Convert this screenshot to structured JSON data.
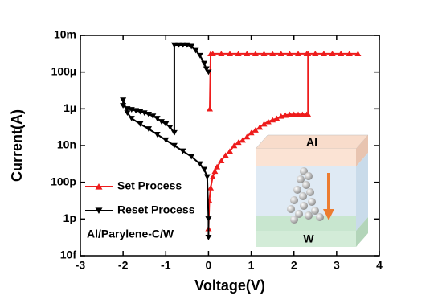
{
  "chart_data": {
    "type": "line",
    "x_label": "Voltage(V)",
    "y_label": "Current(A)",
    "xlim": [
      -3,
      4
    ],
    "xticks": [
      -3,
      -2,
      -1,
      0,
      1,
      2,
      3,
      4
    ],
    "ylim": [
      1e-14,
      0.01
    ],
    "yscale": "log",
    "yticks": [
      {
        "value": 0.01,
        "label": "10m"
      },
      {
        "value": 0.0001,
        "label": "100µ"
      },
      {
        "value": 1e-06,
        "label": "1µ"
      },
      {
        "value": 1e-08,
        "label": "10n"
      },
      {
        "value": 1e-10,
        "label": "100p"
      },
      {
        "value": 1e-12,
        "label": "1p"
      },
      {
        "value": 1e-14,
        "label": "10f"
      }
    ],
    "legend": "lower left",
    "annotation": "Al/Parylene-C/W",
    "series": [
      {
        "name": "Set Process",
        "color": "#ee1c1c",
        "marker": "triangle-up",
        "x": [
          0,
          0.02,
          0.05,
          0.1,
          0.15,
          0.2,
          0.3,
          0.4,
          0.5,
          0.6,
          0.7,
          0.8,
          0.9,
          1.0,
          1.1,
          1.2,
          1.3,
          1.4,
          1.5,
          1.6,
          1.7,
          1.8,
          1.9,
          2.0,
          2.1,
          2.2,
          2.3,
          2.33,
          2.33,
          2.5,
          2.7,
          2.9,
          3.1,
          3.3,
          3.5,
          3.3,
          3.1,
          2.9,
          2.7,
          2.5,
          2.3,
          2.1,
          1.9,
          1.7,
          1.5,
          1.3,
          1.1,
          0.9,
          0.7,
          0.5,
          0.3,
          0.1,
          0.05,
          0.03
        ],
        "values": [
          3e-13,
          1e-11,
          5e-11,
          2e-10,
          4e-10,
          7e-10,
          1.5e-09,
          3e-09,
          5e-09,
          1e-08,
          1.5e-08,
          2e-08,
          3e-08,
          5e-08,
          7e-08,
          1e-07,
          1.5e-07,
          2e-07,
          2.5e-07,
          3e-07,
          4e-07,
          4.5e-07,
          5e-07,
          5e-07,
          5e-07,
          5e-07,
          5e-07,
          5e-07,
          0.001,
          0.001,
          0.001,
          0.001,
          0.001,
          0.001,
          0.001,
          0.001,
          0.001,
          0.001,
          0.001,
          0.001,
          0.001,
          0.001,
          0.001,
          0.001,
          0.001,
          0.001,
          0.001,
          0.001,
          0.001,
          0.001,
          0.001,
          0.001,
          0.001,
          1e-06
        ]
      },
      {
        "name": "Reset Process",
        "color": "#000000",
        "marker": "triangle-down",
        "x": [
          0,
          -0.05,
          -0.1,
          -0.2,
          -0.3,
          -0.4,
          -0.5,
          -0.6,
          -0.7,
          -0.8,
          -0.8,
          -0.9,
          -1.0,
          -1.1,
          -1.2,
          -1.3,
          -1.4,
          -1.5,
          -1.6,
          -1.7,
          -1.8,
          -1.9,
          -2.0,
          -2.0,
          -1.9,
          -1.8,
          -1.6,
          -1.4,
          -1.2,
          -1.0,
          -0.8,
          -0.6,
          -0.4,
          -0.2,
          -0.1,
          -0.03,
          0,
          0
        ],
        "values": [
          0.0001,
          0.00015,
          0.0003,
          0.0008,
          0.0015,
          0.0025,
          0.003,
          0.003,
          0.003,
          0.003,
          5e-08,
          1e-07,
          1.5e-07,
          2e-07,
          3e-07,
          4e-07,
          5e-07,
          6e-07,
          7e-07,
          8e-07,
          9e-07,
          1e-06,
          1.5e-06,
          3e-06,
          6e-07,
          3e-07,
          1.5e-07,
          8e-08,
          4e-08,
          2e-08,
          1e-08,
          5e-09,
          2.5e-09,
          1e-09,
          5e-10,
          2e-10,
          1e-12,
          1e-13
        ]
      }
    ],
    "inset": {
      "top_label": "Al",
      "bottom_label": "W"
    }
  }
}
